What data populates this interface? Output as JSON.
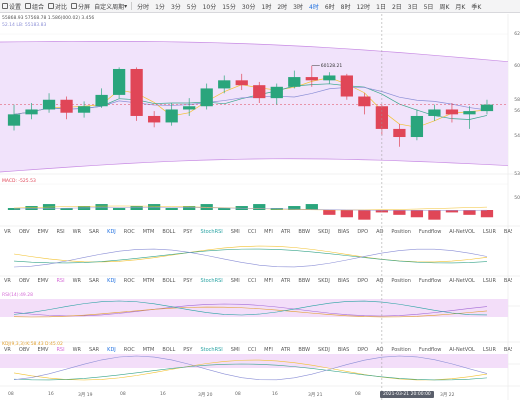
{
  "toolbar": {
    "items": [
      {
        "label": "设置"
      },
      {
        "label": "组合"
      },
      {
        "label": "对比"
      },
      {
        "label": "分屏"
      },
      {
        "label": "自定义周期"
      }
    ],
    "intervals": [
      "分时",
      "1分",
      "3分",
      "5分",
      "10分",
      "15分",
      "30分",
      "1时",
      "2时",
      "3时",
      "4时",
      "6时",
      "8时",
      "12时",
      "1日",
      "2日",
      "3日",
      "5日",
      "周K",
      "月K",
      "季K"
    ],
    "active_interval": "4时"
  },
  "main_info": {
    "line1": "55868.93  57568.78  1.586(000.02)  3.456",
    "line2": "52.14  LB: 55183.83",
    "high_label": "60128.21"
  },
  "price_axis": [
    "62",
    "60",
    "58",
    "56",
    "54",
    "53",
    "50"
  ],
  "indicator_tabs": [
    "VR",
    "OBV",
    "EMV",
    "RSI",
    "WR",
    "SAR",
    "KDJ",
    "ROC",
    "MTM",
    "BOLL",
    "PSY",
    "StochRSI",
    "SMI",
    "CCI",
    "MFI",
    "ATR",
    "BBW",
    "SKDJ",
    "BIAS",
    "DPO",
    "AO",
    "Position",
    "Fundflow",
    "AI-NetVOL",
    "LSUR",
    "BASIS",
    "TVolume",
    "FTBS",
    "TTSI",
    "TTMU"
  ],
  "highlighted_tab": "KDJ",
  "macd_info": "MACD: -525.53",
  "rsi_info": "RSI(14):49.28",
  "kdj_info": "KDJ(9,3,3):K:58.43  D:45.02",
  "x_labels": [
    {
      "label": "08"
    },
    {
      "label": "16"
    },
    {
      "label": "3月 19"
    },
    {
      "label": "08"
    },
    {
      "label": "16"
    },
    {
      "label": "3月 20"
    },
    {
      "label": "08"
    },
    {
      "label": "16"
    },
    {
      "label": "3月 21"
    },
    {
      "label": "08"
    },
    {
      "label": "16"
    },
    {
      "label": "3月 22"
    }
  ],
  "crosshair_date": "2021-03-21 20:00:00",
  "colors": {
    "up": "#2aa57c",
    "down": "#e04657",
    "boll_fill": "#f1e3fb",
    "boll_line": "#c78ae3",
    "ma1": "#f2c230",
    "ma2": "#37a48a",
    "ma3": "#8b8fd6"
  },
  "candles": [
    {
      "o": 56.6,
      "c": 57.3,
      "h": 57.9,
      "l": 56.3
    },
    {
      "o": 57.3,
      "c": 57.6,
      "h": 58.0,
      "l": 57.0
    },
    {
      "o": 57.6,
      "c": 58.2,
      "h": 58.6,
      "l": 57.4
    },
    {
      "o": 58.2,
      "c": 57.4,
      "h": 58.4,
      "l": 57.0
    },
    {
      "o": 57.4,
      "c": 57.8,
      "h": 58.1,
      "l": 57.1
    },
    {
      "o": 57.8,
      "c": 58.5,
      "h": 58.9,
      "l": 57.7
    },
    {
      "o": 58.5,
      "c": 60.1,
      "h": 60.2,
      "l": 58.3
    },
    {
      "o": 60.1,
      "c": 57.2,
      "h": 60.2,
      "l": 56.9
    },
    {
      "o": 57.2,
      "c": 56.8,
      "h": 57.5,
      "l": 56.5
    },
    {
      "o": 56.8,
      "c": 57.6,
      "h": 58.0,
      "l": 56.6
    },
    {
      "o": 57.6,
      "c": 57.8,
      "h": 58.3,
      "l": 57.2
    },
    {
      "o": 57.8,
      "c": 58.9,
      "h": 59.2,
      "l": 57.6
    },
    {
      "o": 58.9,
      "c": 59.4,
      "h": 59.7,
      "l": 58.6
    },
    {
      "o": 59.4,
      "c": 59.1,
      "h": 59.8,
      "l": 58.8
    },
    {
      "o": 59.1,
      "c": 58.3,
      "h": 59.3,
      "l": 58.0
    },
    {
      "o": 58.3,
      "c": 59.0,
      "h": 59.2,
      "l": 57.9
    },
    {
      "o": 59.0,
      "c": 59.6,
      "h": 60.0,
      "l": 58.9
    },
    {
      "o": 59.6,
      "c": 59.4,
      "h": 60.3,
      "l": 59.0
    },
    {
      "o": 59.4,
      "c": 59.7,
      "h": 59.9,
      "l": 59.2
    },
    {
      "o": 59.7,
      "c": 58.4,
      "h": 59.8,
      "l": 58.2
    },
    {
      "o": 58.4,
      "c": 57.8,
      "h": 58.6,
      "l": 57.3
    },
    {
      "o": 57.8,
      "c": 56.4,
      "h": 57.9,
      "l": 56.0
    },
    {
      "o": 56.4,
      "c": 55.9,
      "h": 56.7,
      "l": 55.3
    },
    {
      "o": 55.9,
      "c": 57.2,
      "h": 57.6,
      "l": 55.7
    },
    {
      "o": 57.2,
      "c": 57.6,
      "h": 57.9,
      "l": 56.9
    },
    {
      "o": 57.6,
      "c": 57.3,
      "h": 58.0,
      "l": 56.8
    },
    {
      "o": 57.3,
      "c": 57.5,
      "h": 57.8,
      "l": 56.4
    },
    {
      "o": 57.5,
      "c": 57.9,
      "h": 58.2,
      "l": 57.3
    }
  ]
}
